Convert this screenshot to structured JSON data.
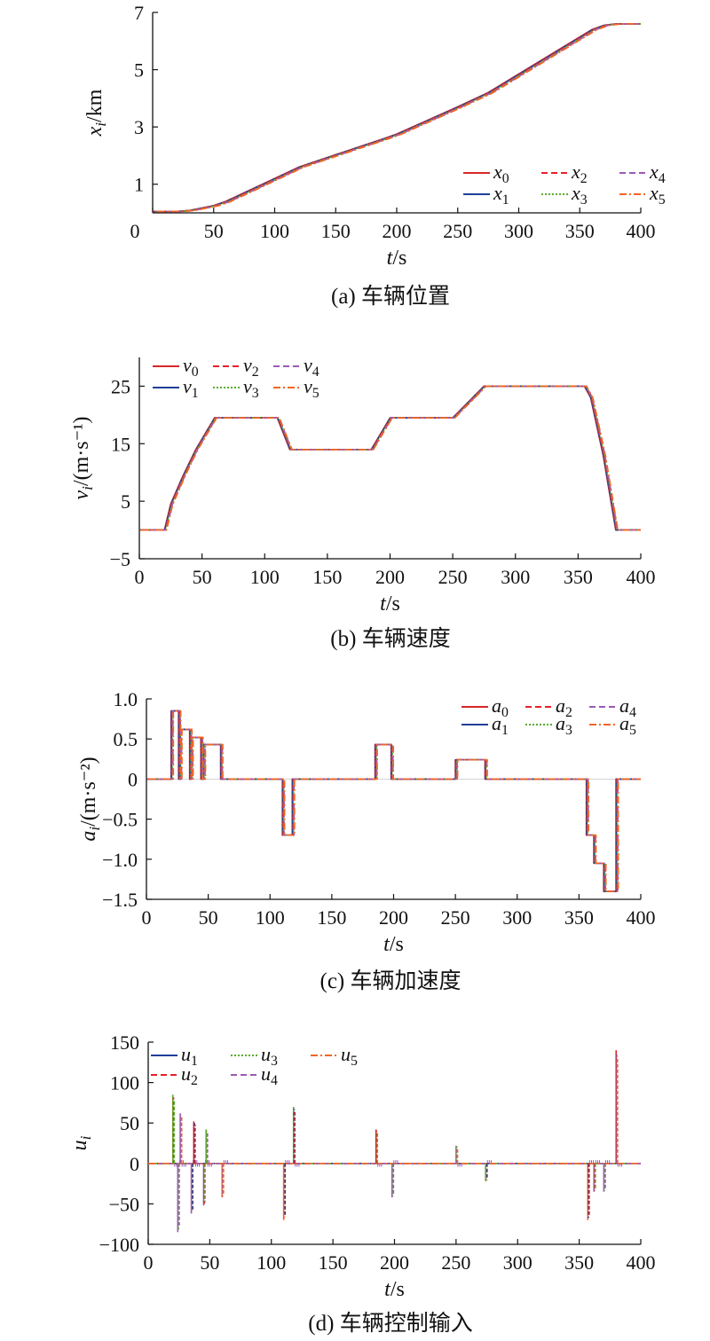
{
  "chart_data": [
    {
      "type": "line",
      "caption": "(a) 车辆位置",
      "xlabel": "t/s",
      "ylabel": "x_i/km",
      "xlim": [
        0,
        400
      ],
      "ylim": [
        0,
        7
      ],
      "xticks": [
        "0",
        "50",
        "100",
        "150",
        "200",
        "250",
        "300",
        "350",
        "400"
      ],
      "yticks": [
        "1",
        "3",
        "5",
        "7"
      ],
      "legend_position": "bottom-right",
      "series_note": "6 near-identical curves, small lag per follower",
      "series": [
        {
          "name": "x_0",
          "color": "#d62728",
          "style": "solid"
        },
        {
          "name": "x_1",
          "color": "#1f3f99",
          "style": "solid"
        },
        {
          "name": "x_2",
          "color": "#e8202a",
          "style": "dashed"
        },
        {
          "name": "x_3",
          "color": "#5aab2b",
          "style": "dotted"
        },
        {
          "name": "x_4",
          "color": "#9b59b6",
          "style": "dashed"
        },
        {
          "name": "x_5",
          "color": "#f26522",
          "style": "dashdot"
        }
      ],
      "x": [
        0,
        20,
        30,
        50,
        60,
        110,
        120,
        190,
        200,
        250,
        275,
        360,
        370,
        380,
        400
      ],
      "y": [
        0.05,
        0.05,
        0.08,
        0.25,
        0.4,
        1.4,
        1.6,
        2.6,
        2.75,
        3.7,
        4.2,
        6.4,
        6.55,
        6.6,
        6.6
      ]
    },
    {
      "type": "line",
      "caption": "(b) 车辆速度",
      "xlabel": "t/s",
      "ylabel": "v_i/(m·s⁻¹)",
      "xlim": [
        0,
        400
      ],
      "ylim": [
        -5,
        30
      ],
      "xticks": [
        "0",
        "50",
        "100",
        "150",
        "200",
        "250",
        "300",
        "350",
        "400"
      ],
      "yticks": [
        "−5",
        "5",
        "15",
        "25"
      ],
      "legend_position": "top-left",
      "series": [
        {
          "name": "v_0",
          "color": "#d62728",
          "style": "solid"
        },
        {
          "name": "v_1",
          "color": "#1f3f99",
          "style": "solid"
        },
        {
          "name": "v_2",
          "color": "#e8202a",
          "style": "dashed"
        },
        {
          "name": "v_3",
          "color": "#5aab2b",
          "style": "dotted"
        },
        {
          "name": "v_4",
          "color": "#9b59b6",
          "style": "dashed"
        },
        {
          "name": "v_5",
          "color": "#f26522",
          "style": "dashdot"
        }
      ],
      "x": [
        0,
        20,
        25,
        35,
        45,
        60,
        110,
        120,
        185,
        200,
        250,
        275,
        355,
        360,
        370,
        380,
        400
      ],
      "y": [
        0,
        0,
        4.5,
        9.5,
        14,
        19.5,
        19.5,
        14,
        14,
        19.5,
        19.5,
        25,
        25,
        23,
        13,
        0,
        0
      ]
    },
    {
      "type": "line",
      "caption": "(c) 车辆加速度",
      "xlabel": "t/s",
      "ylabel": "a_i/(m·s⁻²)",
      "xlim": [
        0,
        400
      ],
      "ylim": [
        -1.5,
        1.0
      ],
      "xticks": [
        "0",
        "50",
        "100",
        "150",
        "200",
        "250",
        "300",
        "350",
        "400"
      ],
      "yticks": [
        "1.0",
        "0.5",
        "0",
        "−0.5",
        "−1.0",
        "−1.5"
      ],
      "legend_position": "top-right",
      "series": [
        {
          "name": "a_0",
          "color": "#d62728",
          "style": "solid"
        },
        {
          "name": "a_1",
          "color": "#1f3f99",
          "style": "solid"
        },
        {
          "name": "a_2",
          "color": "#e8202a",
          "style": "dashed"
        },
        {
          "name": "a_3",
          "color": "#5aab2b",
          "style": "dotted"
        },
        {
          "name": "a_4",
          "color": "#9b59b6",
          "style": "dashed"
        },
        {
          "name": "a_5",
          "color": "#f26522",
          "style": "dashdot"
        }
      ],
      "x": [
        0,
        20,
        20,
        26,
        26,
        27,
        27,
        35,
        35,
        36,
        36,
        44,
        44,
        46,
        46,
        60,
        60,
        110,
        110,
        118,
        118,
        185,
        185,
        198,
        198,
        250,
        250,
        274,
        274,
        356,
        356,
        362,
        362,
        370,
        370,
        380,
        380,
        400
      ],
      "y": [
        0,
        0,
        0.85,
        0.85,
        0,
        0,
        0.62,
        0.62,
        0,
        0,
        0.52,
        0.52,
        0,
        0,
        0.43,
        0.43,
        0,
        0,
        -0.7,
        -0.7,
        0,
        0,
        0.43,
        0.43,
        0,
        0,
        0.24,
        0.24,
        0,
        0,
        -0.7,
        -0.7,
        -1.05,
        -1.05,
        -1.4,
        -1.4,
        0,
        0
      ]
    },
    {
      "type": "line",
      "caption": "(d) 车辆控制输入",
      "xlabel": "t/s",
      "ylabel": "u_i",
      "xlim": [
        0,
        400
      ],
      "ylim": [
        -100,
        150
      ],
      "xticks": [
        "0",
        "50",
        "100",
        "150",
        "200",
        "250",
        "300",
        "350",
        "400"
      ],
      "yticks": [
        "150",
        "100",
        "50",
        "0",
        "−50",
        "−100"
      ],
      "legend_position": "top-left",
      "series": [
        {
          "name": "u_1",
          "color": "#1f3f99",
          "style": "solid"
        },
        {
          "name": "u_2",
          "color": "#e8202a",
          "style": "dashed"
        },
        {
          "name": "u_3",
          "color": "#5aab2b",
          "style": "dotted"
        },
        {
          "name": "u_4",
          "color": "#9b59b6",
          "style": "dashed"
        },
        {
          "name": "u_5",
          "color": "#f26522",
          "style": "dashdot"
        }
      ],
      "spikes": [
        {
          "t": 20,
          "v": 85,
          "c": "#5aab2b"
        },
        {
          "t": 24,
          "v": -85,
          "c": "#9b59b6"
        },
        {
          "t": 26,
          "v": 62,
          "c": "#9b59b6"
        },
        {
          "t": 35,
          "v": -62,
          "c": "#9b59b6"
        },
        {
          "t": 37,
          "v": 52,
          "c": "#d62728"
        },
        {
          "t": 45,
          "v": -52,
          "c": "#9b59b6"
        },
        {
          "t": 47,
          "v": 42,
          "c": "#5aab2b"
        },
        {
          "t": 60,
          "v": -42,
          "c": "#f26522"
        },
        {
          "t": 110,
          "v": -70,
          "c": "#f26522"
        },
        {
          "t": 118,
          "v": 70,
          "c": "#5aab2b"
        },
        {
          "t": 185,
          "v": 42,
          "c": "#d62728"
        },
        {
          "t": 198,
          "v": -42,
          "c": "#9b59b6"
        },
        {
          "t": 250,
          "v": 22,
          "c": "#5aab2b"
        },
        {
          "t": 274,
          "v": -22,
          "c": "#5aab2b"
        },
        {
          "t": 357,
          "v": -70,
          "c": "#f26522"
        },
        {
          "t": 362,
          "v": -35,
          "c": "#9b59b6"
        },
        {
          "t": 370,
          "v": -35,
          "c": "#9b59b6"
        },
        {
          "t": 380,
          "v": 140,
          "c": "#d62728"
        }
      ]
    }
  ]
}
